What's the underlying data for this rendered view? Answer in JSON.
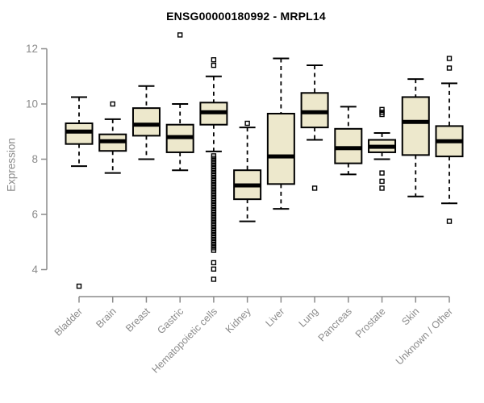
{
  "title": "ENSG00000180992 - MRPL14",
  "chart_data": {
    "type": "boxplot",
    "title": "ENSG00000180992 - MRPL14",
    "xlabel": "",
    "ylabel": "Expression",
    "ylim": [
      3.2,
      12.7
    ],
    "yticks": [
      4,
      6,
      8,
      10,
      12
    ],
    "grid": false,
    "legend": "none",
    "categories": [
      "Bladder",
      "Brain",
      "Breast",
      "Gastric",
      "Hematopoietic cells",
      "Kidney",
      "Liver",
      "Lung",
      "Pancreas",
      "Prostate",
      "Skin",
      "Unknown / Other"
    ],
    "series": [
      {
        "category": "Bladder",
        "whisker_low": 7.75,
        "q1": 8.55,
        "median": 9.0,
        "q3": 9.3,
        "whisker_high": 10.25,
        "outliers": [
          3.4
        ]
      },
      {
        "category": "Brain",
        "whisker_low": 7.5,
        "q1": 8.3,
        "median": 8.65,
        "q3": 8.9,
        "whisker_high": 9.45,
        "outliers": [
          10.0
        ]
      },
      {
        "category": "Breast",
        "whisker_low": 8.0,
        "q1": 8.85,
        "median": 9.25,
        "q3": 9.85,
        "whisker_high": 10.65,
        "outliers": []
      },
      {
        "category": "Gastric",
        "whisker_low": 7.6,
        "q1": 8.25,
        "median": 8.8,
        "q3": 9.25,
        "whisker_high": 10.0,
        "outliers": [
          12.5
        ]
      },
      {
        "category": "Hematopoietic cells",
        "whisker_low": 8.28,
        "q1": 9.25,
        "median": 9.7,
        "q3": 10.05,
        "whisker_high": 11.0,
        "outliers": [
          11.6,
          11.4,
          8.12,
          8.03,
          7.94,
          7.85,
          7.76,
          7.67,
          7.58,
          7.49,
          7.4,
          7.31,
          7.22,
          7.13,
          7.04,
          6.95,
          6.86,
          6.77,
          6.68,
          6.59,
          6.5,
          6.41,
          6.32,
          6.23,
          6.14,
          6.05,
          5.96,
          5.87,
          5.78,
          5.69,
          5.6,
          5.51,
          5.42,
          5.33,
          5.24,
          5.15,
          5.06,
          4.97,
          4.88,
          4.79,
          4.7,
          4.25,
          4.02,
          3.65
        ]
      },
      {
        "category": "Kidney",
        "whisker_low": 5.75,
        "q1": 6.55,
        "median": 7.05,
        "q3": 7.6,
        "whisker_high": 9.15,
        "outliers": [
          9.3
        ]
      },
      {
        "category": "Liver",
        "whisker_low": 6.2,
        "q1": 7.1,
        "median": 8.1,
        "q3": 9.65,
        "whisker_high": 11.65,
        "outliers": []
      },
      {
        "category": "Lung",
        "whisker_low": 8.7,
        "q1": 9.15,
        "median": 9.7,
        "q3": 10.4,
        "whisker_high": 11.4,
        "outliers": [
          6.95
        ]
      },
      {
        "category": "Pancreas",
        "whisker_low": 7.45,
        "q1": 7.85,
        "median": 8.4,
        "q3": 9.1,
        "whisker_high": 9.9,
        "outliers": []
      },
      {
        "category": "Prostate",
        "whisker_low": 8.0,
        "q1": 8.25,
        "median": 8.45,
        "q3": 8.7,
        "whisker_high": 8.95,
        "outliers": [
          9.8,
          9.7,
          9.62,
          7.5,
          7.2,
          6.95
        ]
      },
      {
        "category": "Skin",
        "whisker_low": 6.65,
        "q1": 8.15,
        "median": 9.35,
        "q3": 10.25,
        "whisker_high": 10.9,
        "outliers": []
      },
      {
        "category": "Unknown / Other",
        "whisker_low": 6.4,
        "q1": 8.1,
        "median": 8.65,
        "q3": 9.2,
        "whisker_high": 10.75,
        "outliers": [
          11.65,
          11.3,
          5.75
        ]
      }
    ]
  },
  "colors": {
    "box_fill": "#ede8cc",
    "box_stroke": "#000000",
    "median": "#000000",
    "outlier": "#000000",
    "axis": "#8b8b8b",
    "tick_label": "#8b8b8b",
    "title": "#000000",
    "background": "#ffffff"
  }
}
